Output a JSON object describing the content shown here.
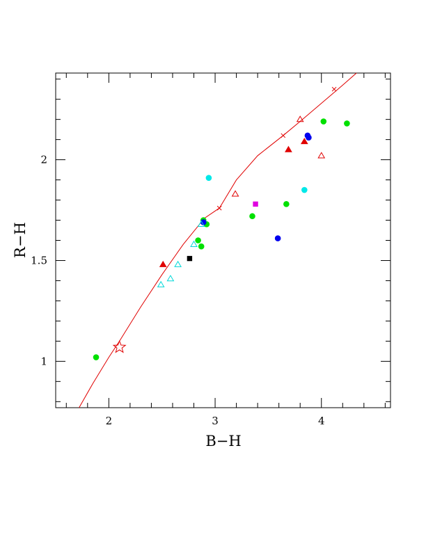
{
  "chart_data": {
    "type": "scatter",
    "title": "",
    "xlabel": "B−H",
    "ylabel": "R−H",
    "xlim": [
      1.5,
      4.65
    ],
    "ylim": [
      0.77,
      2.43
    ],
    "x_ticks": [
      {
        "value": 2,
        "label": "2"
      },
      {
        "value": 3,
        "label": "3"
      },
      {
        "value": 4,
        "label": "4"
      }
    ],
    "y_ticks": [
      {
        "value": 1,
        "label": "1"
      },
      {
        "value": 1.5,
        "label": "1.5"
      },
      {
        "value": 2,
        "label": "2"
      }
    ],
    "grid": false,
    "legend": "none",
    "curve": {
      "color": "#e00000",
      "points": [
        [
          1.72,
          0.77
        ],
        [
          1.85,
          0.89
        ],
        [
          2.0,
          1.02
        ],
        [
          2.1,
          1.1
        ],
        [
          2.3,
          1.27
        ],
        [
          2.5,
          1.43
        ],
        [
          2.7,
          1.58
        ],
        [
          2.9,
          1.71
        ],
        [
          3.04,
          1.76
        ],
        [
          3.2,
          1.9
        ],
        [
          3.4,
          2.02
        ],
        [
          3.64,
          2.12
        ],
        [
          3.8,
          2.19
        ],
        [
          4.0,
          2.28
        ],
        [
          4.2,
          2.37
        ],
        [
          4.33,
          2.43
        ]
      ]
    },
    "curve_markers": [
      {
        "x": 3.04,
        "y": 1.76
      },
      {
        "x": 3.64,
        "y": 2.12
      },
      {
        "x": 4.12,
        "y": 2.35
      }
    ],
    "star_marker": {
      "x": 2.1,
      "y": 1.07,
      "color": "#e00000"
    },
    "series": [
      {
        "marker": "circle",
        "color": "#00e000",
        "filled": true,
        "points": [
          [
            1.88,
            1.02
          ],
          [
            2.84,
            1.6
          ],
          [
            2.87,
            1.57
          ],
          [
            2.89,
            1.7
          ],
          [
            2.92,
            1.68
          ],
          [
            3.35,
            1.72
          ],
          [
            3.67,
            1.78
          ],
          [
            4.02,
            2.19
          ],
          [
            4.24,
            2.18
          ]
        ]
      },
      {
        "marker": "circle",
        "color": "#00e8e8",
        "filled": true,
        "points": [
          [
            2.94,
            1.91
          ],
          [
            3.84,
            1.85
          ]
        ]
      },
      {
        "marker": "circle",
        "color": "#0000ee",
        "filled": true,
        "points": [
          [
            2.89,
            1.69
          ],
          [
            3.59,
            1.61
          ],
          [
            3.87,
            2.12
          ],
          [
            3.88,
            2.11
          ]
        ]
      },
      {
        "marker": "square",
        "color": "#000000",
        "filled": true,
        "points": [
          [
            2.76,
            1.51
          ]
        ]
      },
      {
        "marker": "square",
        "color": "#e000e0",
        "filled": true,
        "points": [
          [
            3.38,
            1.78
          ]
        ]
      },
      {
        "marker": "triangle",
        "color": "#e00000",
        "filled": true,
        "points": [
          [
            2.51,
            1.48
          ],
          [
            3.69,
            2.05
          ],
          [
            3.84,
            2.09
          ]
        ]
      },
      {
        "marker": "triangle",
        "color": "#e00000",
        "filled": false,
        "points": [
          [
            3.19,
            1.83
          ],
          [
            3.8,
            2.2
          ],
          [
            4.0,
            2.02
          ]
        ]
      },
      {
        "marker": "triangle",
        "color": "#00d8d8",
        "filled": false,
        "points": [
          [
            2.49,
            1.38
          ],
          [
            2.58,
            1.41
          ],
          [
            2.65,
            1.48
          ],
          [
            2.8,
            1.58
          ],
          [
            2.87,
            1.68
          ]
        ]
      }
    ]
  }
}
